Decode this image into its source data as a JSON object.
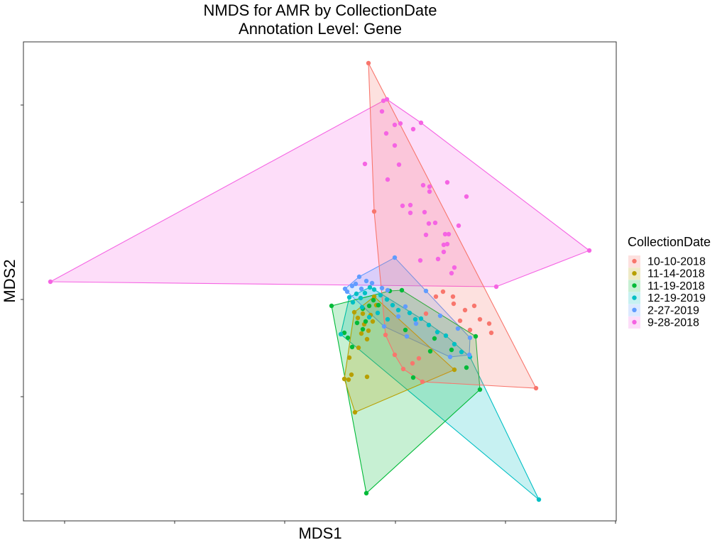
{
  "chart_data": {
    "type": "scatter",
    "title": "NMDS for AMR by CollectionDate",
    "subtitle": "Annotation Level: Gene",
    "xlabel": "MDS1",
    "ylabel": "MDS2",
    "grid": false,
    "hulls": true,
    "legend": {
      "title": "CollectionDate",
      "placement": "right"
    },
    "series": [
      {
        "name": "10-10-2018",
        "color": "#F8766D",
        "points": [
          [
            519,
            89
          ],
          [
            527,
            298
          ],
          [
            755,
            547
          ],
          [
            676,
            450
          ],
          [
            692,
            469
          ],
          [
            668,
            431
          ],
          [
            655,
            437
          ],
          [
            689,
            456
          ],
          [
            662,
            465
          ],
          [
            648,
            452
          ],
          [
            638,
            418
          ],
          [
            639,
            428
          ],
          [
            624,
            411
          ],
          [
            614,
            418
          ],
          [
            600,
            442
          ],
          [
            590,
            505
          ],
          [
            568,
            520
          ],
          [
            595,
            538
          ],
          [
            581,
            512
          ],
          [
            556,
            500
          ],
          [
            543,
            472
          ]
        ]
      },
      {
        "name": "11-14-2018",
        "color": "#B79F00",
        "points": [
          [
            500,
            581
          ],
          [
            485,
            534
          ],
          [
            491,
            535
          ],
          [
            495,
            528
          ],
          [
            492,
            504
          ],
          [
            517,
            531
          ],
          [
            517,
            478
          ],
          [
            505,
            490
          ],
          [
            519,
            466
          ],
          [
            525,
            453
          ],
          [
            509,
            470
          ],
          [
            513,
            457
          ],
          [
            522,
            444
          ],
          [
            499,
            440
          ],
          [
            504,
            448
          ],
          [
            527,
            418
          ],
          [
            530,
            430
          ],
          [
            511,
            442
          ],
          [
            640,
            521
          ]
        ]
      },
      {
        "name": "11-19-2018",
        "color": "#00BA38",
        "points": [
          [
            516,
            695
          ],
          [
            676,
            549
          ],
          [
            670,
            474
          ],
          [
            467,
            431
          ],
          [
            485,
            469
          ],
          [
            490,
            476
          ],
          [
            496,
            489
          ],
          [
            503,
            455
          ],
          [
            511,
            464
          ],
          [
            515,
            453
          ],
          [
            511,
            435
          ],
          [
            520,
            431
          ],
          [
            526,
            423
          ],
          [
            533,
            430
          ],
          [
            549,
            410
          ],
          [
            566,
            409
          ],
          [
            582,
            532
          ],
          [
            606,
            495
          ],
          [
            636,
            493
          ],
          [
            657,
            518
          ],
          [
            612,
            477
          ],
          [
            571,
            465
          ]
        ]
      },
      {
        "name": "12-19-2019",
        "color": "#00BFC4",
        "points": [
          [
            759,
            704
          ],
          [
            480,
            471
          ],
          [
            492,
            419
          ],
          [
            497,
            426
          ],
          [
            502,
            414
          ],
          [
            508,
            420
          ],
          [
            514,
            413
          ],
          [
            521,
            405
          ],
          [
            527,
            408
          ],
          [
            536,
            416
          ],
          [
            545,
            422
          ],
          [
            553,
            430
          ],
          [
            561,
            437
          ],
          [
            577,
            441
          ],
          [
            585,
            450
          ],
          [
            593,
            449
          ],
          [
            604,
            458
          ],
          [
            616,
            468
          ],
          [
            628,
            473
          ],
          [
            640,
            485
          ],
          [
            650,
            496
          ],
          [
            662,
            503
          ],
          [
            546,
            450
          ],
          [
            532,
            441
          ],
          [
            520,
            447
          ],
          [
            510,
            433
          ]
        ]
      },
      {
        "name": "2-27-2019",
        "color": "#619CFF",
        "points": [
          [
            556,
            363
          ],
          [
            506,
            390
          ],
          [
            486,
            407
          ],
          [
            489,
            411
          ],
          [
            496,
            403
          ],
          [
            501,
            400
          ],
          [
            509,
            407
          ],
          [
            516,
            396
          ],
          [
            524,
            399
          ],
          [
            538,
            406
          ],
          [
            546,
            409
          ],
          [
            600,
            410
          ],
          [
            620,
            445
          ],
          [
            645,
            463
          ],
          [
            662,
            476
          ],
          [
            661,
            500
          ],
          [
            634,
            503
          ],
          [
            573,
            474
          ],
          [
            586,
            456
          ],
          [
            561,
            446
          ],
          [
            571,
            432
          ],
          [
            541,
            460
          ]
        ]
      },
      {
        "name": "9-28-2018",
        "color": "#F564E3",
        "points": [
          [
            71,
            397
          ],
          [
            545,
            140
          ],
          [
            830,
            353
          ],
          [
            699,
            404
          ],
          [
            593,
            173
          ],
          [
            540,
            142
          ],
          [
            538,
            157
          ],
          [
            556,
            176
          ],
          [
            544,
            188
          ],
          [
            564,
            174
          ],
          [
            582,
            182
          ],
          [
            556,
            205
          ],
          [
            514,
            231
          ],
          [
            562,
            232
          ],
          [
            546,
            253
          ],
          [
            596,
            261
          ],
          [
            605,
            263
          ],
          [
            605,
            270
          ],
          [
            630,
            257
          ],
          [
            657,
            277
          ],
          [
            567,
            290
          ],
          [
            578,
            289
          ],
          [
            578,
            300
          ],
          [
            598,
            299
          ],
          [
            604,
            315
          ],
          [
            646,
            318
          ],
          [
            613,
            314
          ],
          [
            627,
            330
          ],
          [
            632,
            330
          ],
          [
            600,
            331
          ],
          [
            625,
            345
          ],
          [
            630,
            344
          ],
          [
            625,
            355
          ],
          [
            617,
            365
          ],
          [
            592,
            367
          ],
          [
            636,
            385
          ],
          [
            640,
            377
          ]
        ]
      }
    ]
  }
}
